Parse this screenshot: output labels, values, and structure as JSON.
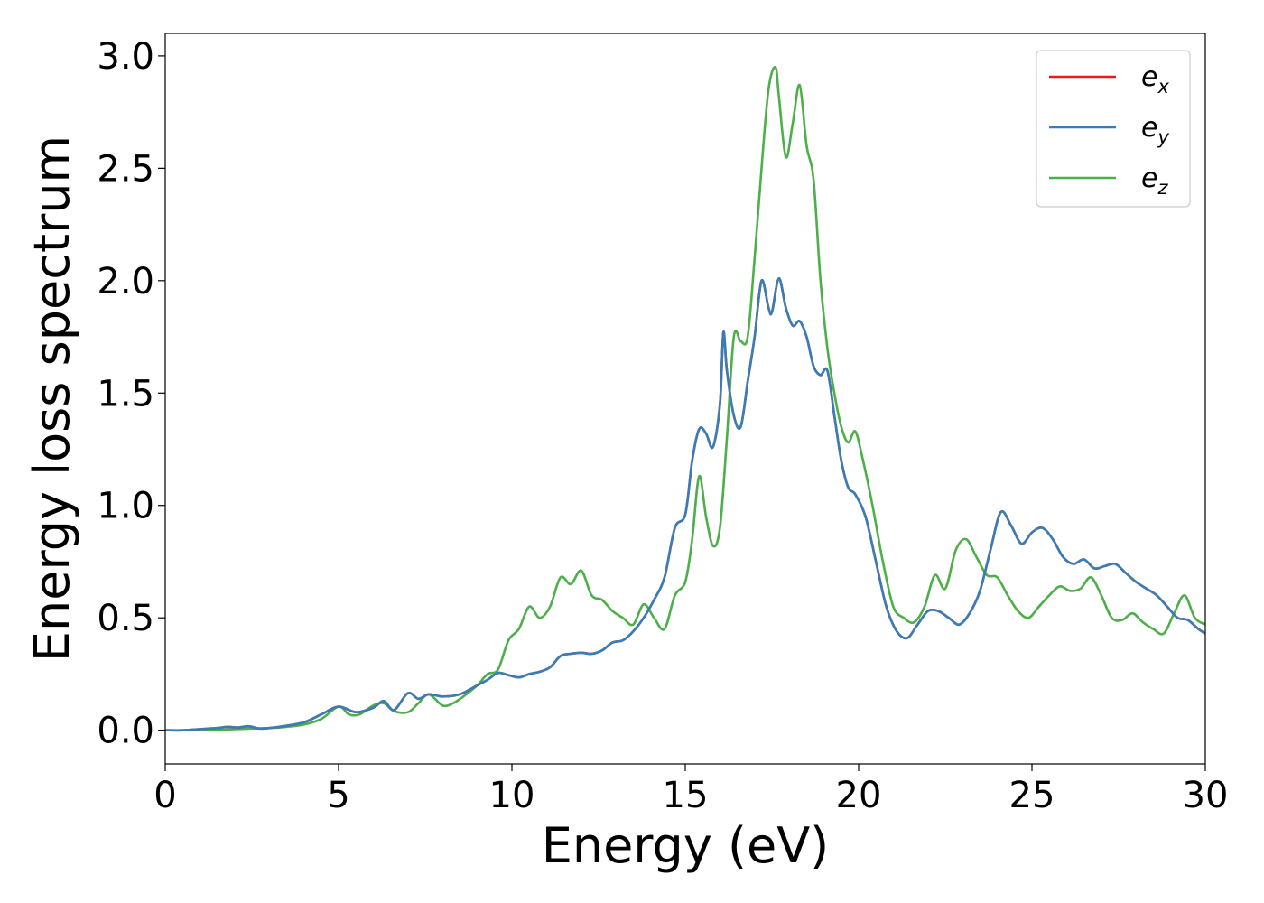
{
  "chart_data": {
    "type": "line",
    "title": "",
    "xlabel": "Energy (eV)",
    "ylabel": "Energy loss spectrum",
    "xlim": [
      0,
      30
    ],
    "ylim": [
      -0.15,
      3.1
    ],
    "xticks": [
      0,
      5,
      10,
      15,
      20,
      25,
      30
    ],
    "xtick_labels": [
      "0",
      "5",
      "10",
      "15",
      "20",
      "25",
      "30"
    ],
    "yticks": [
      0.0,
      0.5,
      1.0,
      1.5,
      2.0,
      2.5,
      3.0
    ],
    "ytick_labels": [
      "0.0",
      "0.5",
      "1.0",
      "1.5",
      "2.0",
      "2.5",
      "3.0"
    ],
    "grid": false,
    "legend_position": "top-right",
    "series": [
      {
        "name": "e",
        "subscript": "x",
        "color": "#e41a1c",
        "x": [
          0,
          0.5,
          1,
          1.5,
          1.8,
          2.1,
          2.4,
          2.7,
          3,
          3.5,
          4,
          4.5,
          5,
          5.5,
          6,
          6.3,
          6.6,
          7,
          7.3,
          7.6,
          8,
          8.5,
          9,
          9.3,
          9.6,
          9.9,
          10.2,
          10.5,
          10.8,
          11.1,
          11.4,
          11.7,
          12,
          12.3,
          12.6,
          12.9,
          13.2,
          13.5,
          13.8,
          14.1,
          14.4,
          14.7,
          15,
          15.2,
          15.4,
          15.6,
          15.8,
          16,
          16.1,
          16.2,
          16.4,
          16.6,
          16.8,
          17,
          17.2,
          17.4,
          17.5,
          17.7,
          17.9,
          18.1,
          18.3,
          18.5,
          18.7,
          18.9,
          19.1,
          19.3,
          19.5,
          19.7,
          19.9,
          20.2,
          20.5,
          20.8,
          21.1,
          21.4,
          21.7,
          22,
          22.3,
          22.6,
          22.9,
          23.2,
          23.5,
          23.8,
          24.1,
          24.4,
          24.7,
          25,
          25.3,
          25.6,
          25.9,
          26.2,
          26.5,
          26.8,
          27.1,
          27.4,
          27.7,
          28,
          28.3,
          28.6,
          28.9,
          29.2,
          29.5,
          29.8,
          30
        ],
        "y": [
          0,
          0,
          0.005,
          0.01,
          0.015,
          0.012,
          0.018,
          0.008,
          0.01,
          0.02,
          0.035,
          0.07,
          0.105,
          0.08,
          0.1,
          0.13,
          0.09,
          0.165,
          0.14,
          0.16,
          0.15,
          0.16,
          0.2,
          0.225,
          0.255,
          0.245,
          0.235,
          0.25,
          0.26,
          0.28,
          0.33,
          0.34,
          0.345,
          0.34,
          0.355,
          0.39,
          0.4,
          0.44,
          0.5,
          0.58,
          0.68,
          0.9,
          0.96,
          1.2,
          1.34,
          1.32,
          1.26,
          1.45,
          1.77,
          1.6,
          1.4,
          1.35,
          1.55,
          1.75,
          2.0,
          1.88,
          1.86,
          2.01,
          1.88,
          1.8,
          1.82,
          1.75,
          1.62,
          1.58,
          1.6,
          1.4,
          1.2,
          1.08,
          1.05,
          0.95,
          0.75,
          0.55,
          0.44,
          0.41,
          0.47,
          0.53,
          0.53,
          0.5,
          0.47,
          0.52,
          0.62,
          0.8,
          0.97,
          0.91,
          0.83,
          0.88,
          0.9,
          0.85,
          0.77,
          0.74,
          0.76,
          0.72,
          0.73,
          0.74,
          0.7,
          0.66,
          0.63,
          0.6,
          0.55,
          0.5,
          0.49,
          0.45,
          0.43
        ]
      },
      {
        "name": "e",
        "subscript": "y",
        "color": "#377eb8",
        "x": [
          0,
          0.5,
          1,
          1.5,
          1.8,
          2.1,
          2.4,
          2.7,
          3,
          3.5,
          4,
          4.5,
          5,
          5.5,
          6,
          6.3,
          6.6,
          7,
          7.3,
          7.6,
          8,
          8.5,
          9,
          9.3,
          9.6,
          9.9,
          10.2,
          10.5,
          10.8,
          11.1,
          11.4,
          11.7,
          12,
          12.3,
          12.6,
          12.9,
          13.2,
          13.5,
          13.8,
          14.1,
          14.4,
          14.7,
          15,
          15.2,
          15.4,
          15.6,
          15.8,
          16,
          16.1,
          16.2,
          16.4,
          16.6,
          16.8,
          17,
          17.2,
          17.4,
          17.5,
          17.7,
          17.9,
          18.1,
          18.3,
          18.5,
          18.7,
          18.9,
          19.1,
          19.3,
          19.5,
          19.7,
          19.9,
          20.2,
          20.5,
          20.8,
          21.1,
          21.4,
          21.7,
          22,
          22.3,
          22.6,
          22.9,
          23.2,
          23.5,
          23.8,
          24.1,
          24.4,
          24.7,
          25,
          25.3,
          25.6,
          25.9,
          26.2,
          26.5,
          26.8,
          27.1,
          27.4,
          27.7,
          28,
          28.3,
          28.6,
          28.9,
          29.2,
          29.5,
          29.8,
          30
        ],
        "y": [
          0,
          0,
          0.005,
          0.01,
          0.015,
          0.012,
          0.018,
          0.008,
          0.01,
          0.02,
          0.035,
          0.07,
          0.105,
          0.08,
          0.1,
          0.13,
          0.09,
          0.165,
          0.14,
          0.16,
          0.15,
          0.16,
          0.2,
          0.225,
          0.255,
          0.245,
          0.235,
          0.25,
          0.26,
          0.28,
          0.33,
          0.34,
          0.345,
          0.34,
          0.355,
          0.39,
          0.4,
          0.44,
          0.5,
          0.58,
          0.68,
          0.9,
          0.96,
          1.2,
          1.34,
          1.32,
          1.26,
          1.45,
          1.77,
          1.6,
          1.4,
          1.35,
          1.55,
          1.75,
          2.0,
          1.88,
          1.86,
          2.01,
          1.88,
          1.8,
          1.82,
          1.75,
          1.62,
          1.58,
          1.6,
          1.4,
          1.2,
          1.08,
          1.05,
          0.95,
          0.75,
          0.55,
          0.44,
          0.41,
          0.47,
          0.53,
          0.53,
          0.5,
          0.47,
          0.52,
          0.62,
          0.8,
          0.97,
          0.91,
          0.83,
          0.88,
          0.9,
          0.85,
          0.77,
          0.74,
          0.76,
          0.72,
          0.73,
          0.74,
          0.7,
          0.66,
          0.63,
          0.6,
          0.55,
          0.5,
          0.49,
          0.45,
          0.43
        ]
      },
      {
        "name": "e",
        "subscript": "z",
        "color": "#4daf4a",
        "x": [
          0,
          0.5,
          1,
          1.5,
          2,
          2.5,
          3,
          3.5,
          4,
          4.5,
          5,
          5.3,
          5.6,
          6,
          6.3,
          6.6,
          7,
          7.3,
          7.6,
          8,
          8.3,
          8.6,
          9,
          9.3,
          9.6,
          9.9,
          10.2,
          10.5,
          10.8,
          11.1,
          11.4,
          11.7,
          12,
          12.3,
          12.6,
          12.9,
          13.2,
          13.5,
          13.8,
          14.1,
          14.4,
          14.7,
          15,
          15.2,
          15.4,
          15.6,
          15.8,
          16,
          16.2,
          16.4,
          16.6,
          16.8,
          17,
          17.2,
          17.4,
          17.6,
          17.7,
          17.9,
          18.1,
          18.3,
          18.5,
          18.7,
          18.9,
          19.1,
          19.3,
          19.5,
          19.7,
          19.9,
          20.1,
          20.4,
          20.7,
          21,
          21.3,
          21.6,
          21.9,
          22.2,
          22.5,
          22.8,
          23.1,
          23.4,
          23.7,
          24,
          24.3,
          24.6,
          24.9,
          25.2,
          25.5,
          25.8,
          26.1,
          26.4,
          26.7,
          27,
          27.3,
          27.6,
          27.9,
          28.2,
          28.5,
          28.8,
          29.1,
          29.4,
          29.7,
          30
        ],
        "y": [
          0,
          0,
          0,
          0.002,
          0.005,
          0.008,
          0.01,
          0.015,
          0.025,
          0.05,
          0.105,
          0.07,
          0.07,
          0.11,
          0.12,
          0.085,
          0.08,
          0.12,
          0.16,
          0.11,
          0.12,
          0.15,
          0.2,
          0.25,
          0.27,
          0.4,
          0.45,
          0.55,
          0.5,
          0.55,
          0.68,
          0.65,
          0.71,
          0.6,
          0.58,
          0.53,
          0.5,
          0.47,
          0.56,
          0.5,
          0.45,
          0.6,
          0.66,
          0.85,
          1.13,
          0.95,
          0.82,
          0.9,
          1.3,
          1.75,
          1.73,
          1.75,
          2.1,
          2.5,
          2.85,
          2.95,
          2.82,
          2.55,
          2.7,
          2.87,
          2.6,
          2.45,
          2.0,
          1.7,
          1.5,
          1.35,
          1.28,
          1.33,
          1.22,
          1.0,
          0.75,
          0.55,
          0.5,
          0.48,
          0.55,
          0.69,
          0.63,
          0.8,
          0.85,
          0.77,
          0.69,
          0.68,
          0.6,
          0.53,
          0.5,
          0.55,
          0.6,
          0.64,
          0.62,
          0.63,
          0.68,
          0.6,
          0.5,
          0.49,
          0.52,
          0.48,
          0.45,
          0.43,
          0.52,
          0.6,
          0.5,
          0.47
        ]
      }
    ]
  }
}
